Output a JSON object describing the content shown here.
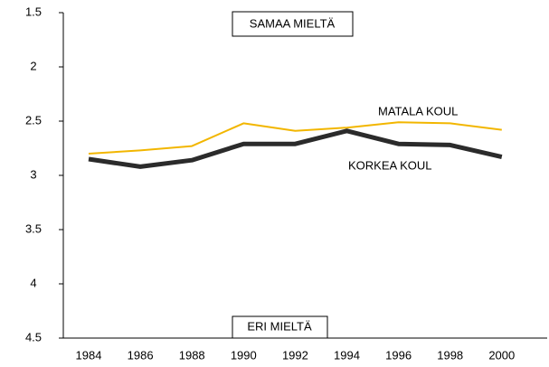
{
  "chart_data": {
    "type": "line",
    "categories": [
      "1984",
      "1986",
      "1988",
      "1990",
      "1992",
      "1994",
      "1996",
      "1998",
      "2000"
    ],
    "series": [
      {
        "name": "MATALA KOUL",
        "color": "#f2b600",
        "values": [
          2.8,
          2.77,
          2.73,
          2.52,
          2.59,
          2.56,
          2.51,
          2.52,
          2.58
        ]
      },
      {
        "name": "KORKEA KOUL",
        "color": "#2b2b2b",
        "values": [
          2.85,
          2.92,
          2.86,
          2.71,
          2.71,
          2.59,
          2.71,
          2.72,
          2.83
        ]
      }
    ],
    "ylim": [
      1.5,
      4.5
    ],
    "yticks": [
      1.5,
      2,
      2.5,
      3,
      3.5,
      4,
      4.5
    ],
    "y_inverted": true,
    "annotations": [
      "SAMAA MIELTÄ",
      "ERI MIELTÄ"
    ]
  }
}
